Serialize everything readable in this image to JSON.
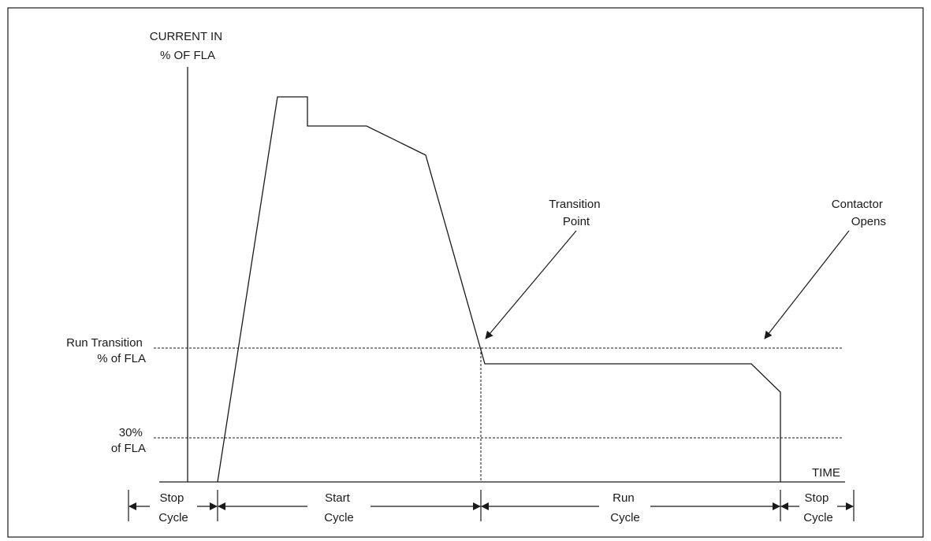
{
  "y_axis_label": [
    "CURRENT IN",
    "% OF FLA"
  ],
  "x_axis_label": "TIME",
  "levels": {
    "run_transition": [
      "Run Transition",
      "% of FLA"
    ],
    "thirty_percent": [
      "30%",
      "of FLA"
    ]
  },
  "annotations": {
    "transition_point": [
      "Transition",
      "Point"
    ],
    "contactor_opens": [
      "Contactor",
      "Opens"
    ]
  },
  "cycles": {
    "stop_1": [
      "Stop",
      "Cycle"
    ],
    "start": [
      "Start",
      "Cycle"
    ],
    "run": [
      "Run",
      "Cycle"
    ],
    "stop_2": [
      "Stop",
      "Cycle"
    ]
  },
  "colors": {
    "line": "#1a1a1a",
    "frame": "#1a1a1a",
    "background": "#ffffff"
  }
}
